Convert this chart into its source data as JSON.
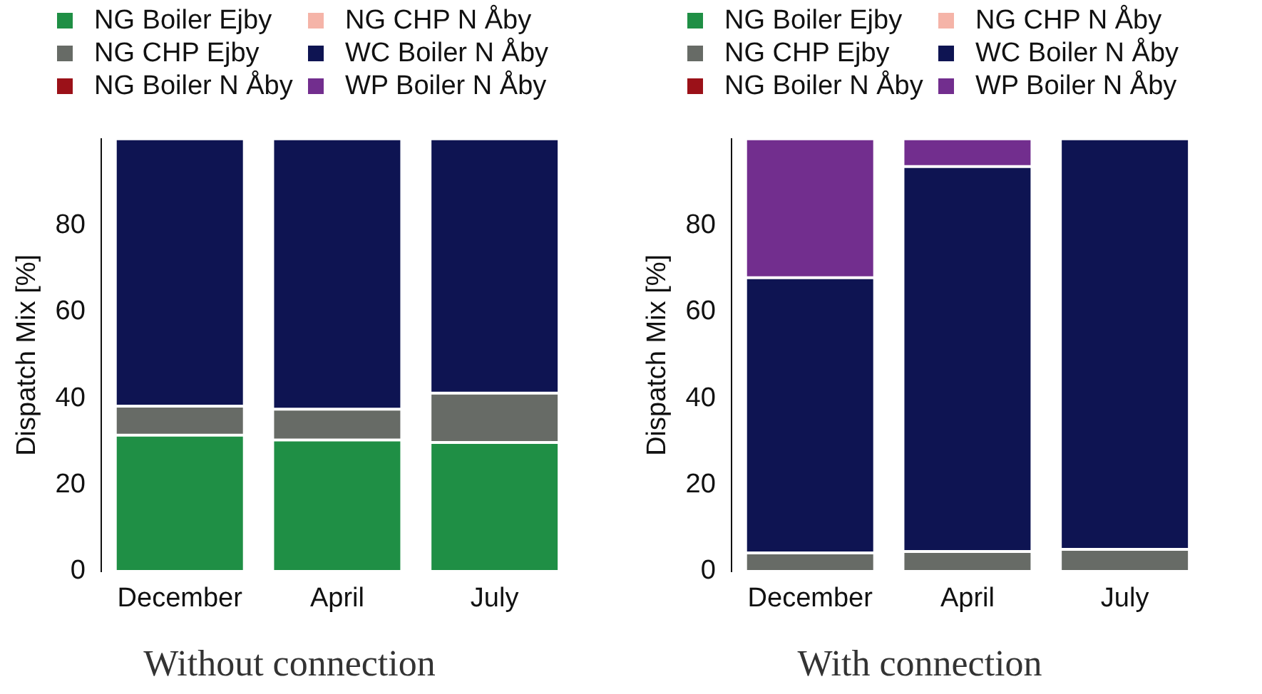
{
  "chart_data": [
    {
      "type": "bar",
      "title": "Without connection",
      "ylabel": "Dispatch Mix [%]",
      "categories": [
        "December",
        "April",
        "July"
      ],
      "stacked": true,
      "ylim": [
        0,
        100
      ],
      "yticks": [
        0,
        20,
        40,
        60,
        80
      ],
      "grid": false,
      "legend": "top",
      "series": [
        {
          "name": "NG Boiler Ejby",
          "color": "#1f8f45",
          "values": [
            31.5,
            30.4,
            29.8
          ]
        },
        {
          "name": "NG CHP Ejby",
          "color": "#676b66",
          "values": [
            6.7,
            7.1,
            11.4
          ]
        },
        {
          "name": "NG Boiler N Åby",
          "color": "#9b1118",
          "values": [
            0,
            0,
            0
          ]
        },
        {
          "name": "NG CHP N Åby",
          "color": "#f5b4a8",
          "values": [
            0,
            0,
            0
          ]
        },
        {
          "name": "WC Boiler N Åby",
          "color": "#0e1452",
          "values": [
            61.8,
            62.5,
            58.8
          ]
        },
        {
          "name": "WP Boiler N Åby",
          "color": "#722e8e",
          "values": [
            0,
            0,
            0
          ]
        }
      ]
    },
    {
      "type": "bar",
      "title": "With connection",
      "ylabel": "Dispatch Mix [%]",
      "categories": [
        "December",
        "April",
        "July"
      ],
      "stacked": true,
      "ylim": [
        0,
        100
      ],
      "yticks": [
        0,
        20,
        40,
        60,
        80
      ],
      "grid": false,
      "legend": "top",
      "series": [
        {
          "name": "NG Boiler Ejby",
          "color": "#1f8f45",
          "values": [
            0,
            0,
            0
          ]
        },
        {
          "name": "NG CHP Ejby",
          "color": "#676b66",
          "values": [
            4.3,
            4.6,
            5.1
          ]
        },
        {
          "name": "NG Boiler N Åby",
          "color": "#9b1118",
          "values": [
            0,
            0,
            0
          ]
        },
        {
          "name": "NG CHP N Åby",
          "color": "#f5b4a8",
          "values": [
            0,
            0,
            0
          ]
        },
        {
          "name": "WC Boiler N Åby",
          "color": "#0e1452",
          "values": [
            63.6,
            89.0,
            94.9
          ]
        },
        {
          "name": "WP Boiler N Åby",
          "color": "#722e8e",
          "values": [
            32.1,
            6.4,
            0
          ]
        }
      ]
    }
  ]
}
